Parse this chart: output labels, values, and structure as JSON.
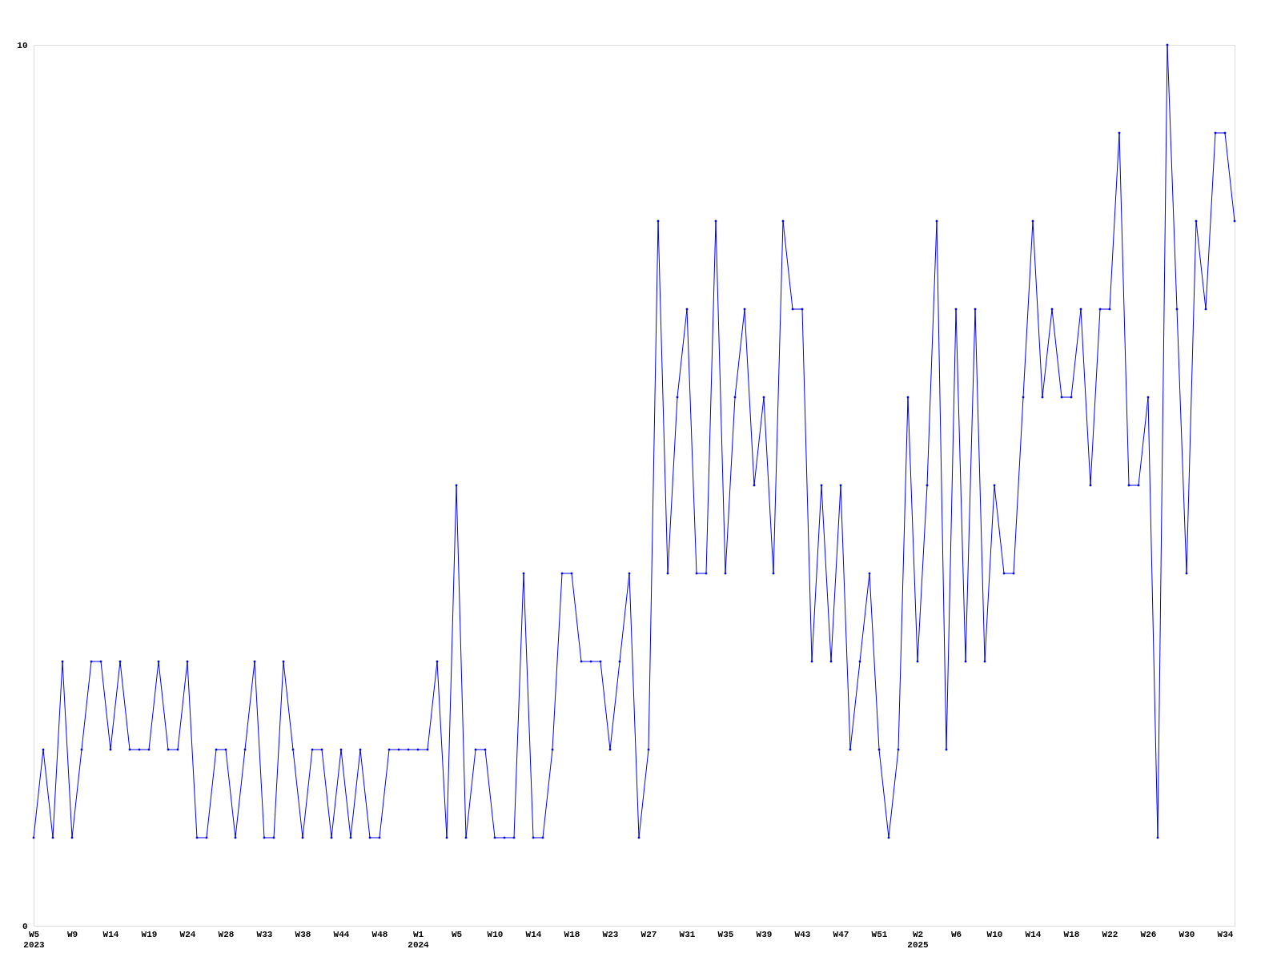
{
  "chart_data": {
    "type": "line",
    "categories": [
      "W5\n2023",
      null,
      null,
      null,
      "W9",
      null,
      null,
      null,
      "W14",
      null,
      null,
      null,
      "W19",
      null,
      null,
      null,
      "W24",
      null,
      null,
      null,
      "W28",
      null,
      null,
      null,
      "W33",
      null,
      null,
      null,
      "W38",
      null,
      null,
      null,
      "W44",
      null,
      null,
      null,
      "W48",
      null,
      null,
      null,
      "W1\n2024",
      null,
      null,
      null,
      "W5",
      null,
      null,
      null,
      "W10",
      null,
      null,
      null,
      "W14",
      null,
      null,
      null,
      "W18",
      null,
      null,
      null,
      "W23",
      null,
      null,
      null,
      "W27",
      null,
      null,
      null,
      "W31",
      null,
      null,
      null,
      "W35",
      null,
      null,
      null,
      "W39",
      null,
      null,
      null,
      "W43",
      null,
      null,
      null,
      "W47",
      null,
      null,
      null,
      "W51",
      null,
      null,
      null,
      "W2\n2025",
      null,
      null,
      null,
      "W6",
      null,
      null,
      null,
      "W10",
      null,
      null,
      null,
      "W14",
      null,
      null,
      null,
      "W18",
      null,
      null,
      null,
      "W22",
      null,
      null,
      null,
      "W26",
      null,
      null,
      null,
      "W30",
      null,
      null,
      null,
      "W34",
      null
    ],
    "values": [
      1,
      2,
      1,
      3,
      1,
      2,
      3,
      3,
      2,
      3,
      2,
      2,
      2,
      3,
      2,
      2,
      3,
      1,
      1,
      2,
      2,
      1,
      2,
      3,
      1,
      1,
      3,
      2,
      1,
      2,
      2,
      1,
      2,
      1,
      2,
      1,
      1,
      2,
      2,
      2,
      2,
      2,
      3,
      1,
      5,
      1,
      2,
      2,
      1,
      1,
      1,
      4,
      1,
      1,
      2,
      4,
      4,
      3,
      3,
      3,
      2,
      3,
      4,
      1,
      2,
      8,
      4,
      6,
      7,
      4,
      4,
      8,
      4,
      6,
      7,
      5,
      6,
      4,
      8,
      7,
      7,
      3,
      5,
      3,
      5,
      2,
      3,
      4,
      2,
      1,
      2,
      6,
      3,
      5,
      8,
      2,
      7,
      3,
      7,
      3,
      5,
      4,
      4,
      6,
      8,
      6,
      7,
      6,
      6,
      7,
      5,
      7,
      7,
      9,
      5,
      5,
      6,
      1,
      10,
      7,
      4,
      8,
      7,
      9,
      9,
      8
    ],
    "color": "#0000ff",
    "ylim": [
      0,
      10
    ],
    "yticks": [
      0,
      10
    ],
    "marker": "diamond",
    "line_style": "solid",
    "grid": false
  }
}
